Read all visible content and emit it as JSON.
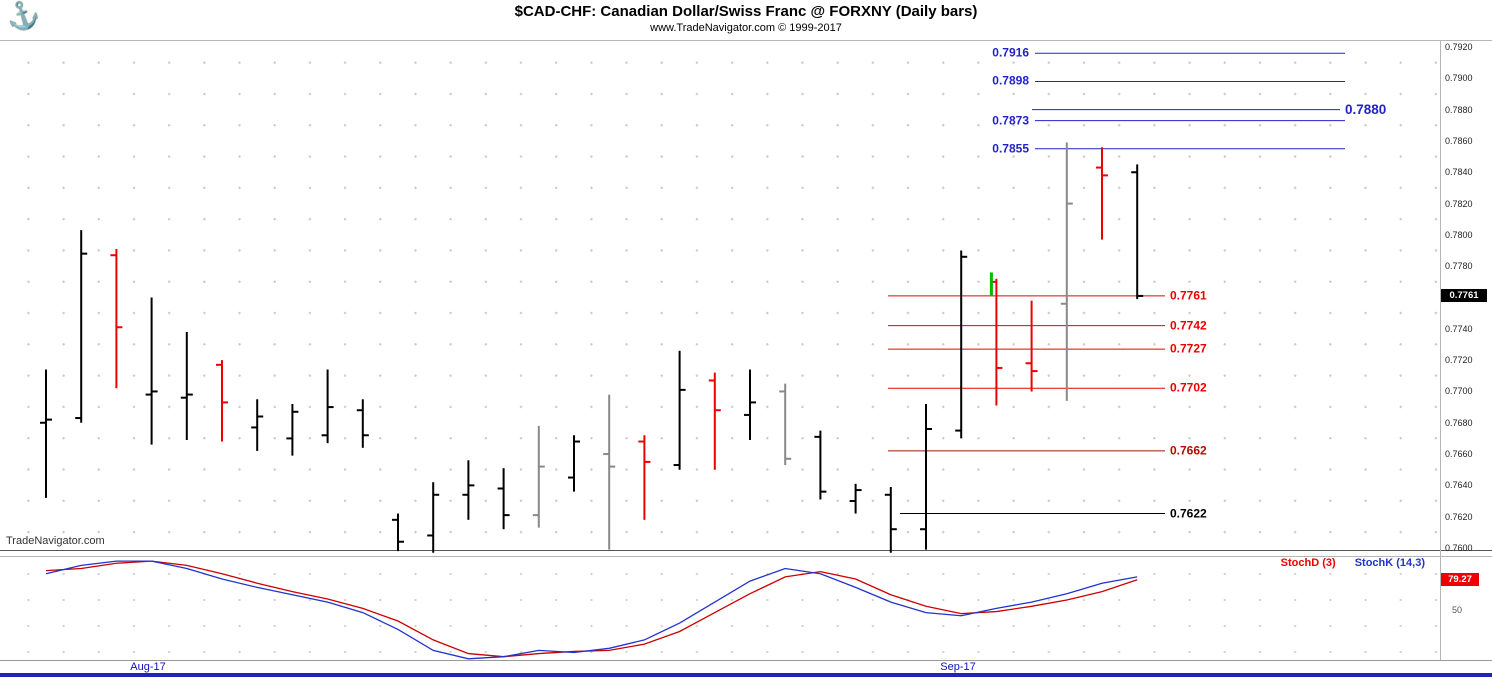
{
  "header": {
    "title": "$CAD-CHF:  Canadian Dollar/Swiss Franc @ FORXNY  (Daily bars)",
    "subtitle": "www.TradeNavigator.com © 1999-2017",
    "logo_icon": "anchor-icon"
  },
  "watermark": "TradeNavigator.com",
  "price_axis": {
    "labels": [
      "0.7920",
      "0.7900",
      "0.7880",
      "0.7860",
      "0.7840",
      "0.7820",
      "0.7800",
      "0.7780",
      "0.7760",
      "0.7740",
      "0.7720",
      "0.7700",
      "0.7680",
      "0.7660",
      "0.7640",
      "0.7620",
      "0.7600"
    ],
    "current_price_badge": "0.7761",
    "badge_bg": "#000000"
  },
  "stoch_panel": {
    "legend": [
      {
        "label": "StochD (3)",
        "color": "#ee0000"
      },
      {
        "label": "StochK (14,3)",
        "color": "#2233cc"
      }
    ],
    "value_badge": "79.27",
    "value_badge_bg": "#ee0000",
    "mid_label": "50"
  },
  "x_axis": {
    "labels": [
      "Aug-17",
      "Sep-17"
    ]
  },
  "chart_data": {
    "type": "bar",
    "subtype": "ohlc-daily-bars",
    "symbol": "$CAD-CHF",
    "title": "$CAD-CHF Canadian Dollar/Swiss Franc @ FORXNY Daily",
    "price_range": [
      0.76,
      0.792
    ],
    "bars": [
      {
        "color": "black",
        "o": 0.768,
        "h": 0.7714,
        "l": 0.7632,
        "c": 0.7682
      },
      {
        "color": "black",
        "o": 0.7683,
        "h": 0.7803,
        "l": 0.768,
        "c": 0.7788
      },
      {
        "color": "red",
        "o": 0.7787,
        "h": 0.7791,
        "l": 0.7702,
        "c": 0.7741
      },
      {
        "color": "black",
        "o": 0.7698,
        "h": 0.776,
        "l": 0.7666,
        "c": 0.77
      },
      {
        "color": "black",
        "o": 0.7696,
        "h": 0.7738,
        "l": 0.7669,
        "c": 0.7698
      },
      {
        "color": "red",
        "o": 0.7717,
        "h": 0.772,
        "l": 0.7668,
        "c": 0.7693
      },
      {
        "color": "black",
        "o": 0.7677,
        "h": 0.7695,
        "l": 0.7662,
        "c": 0.7684
      },
      {
        "color": "black",
        "o": 0.767,
        "h": 0.7692,
        "l": 0.7659,
        "c": 0.7687
      },
      {
        "color": "black",
        "o": 0.7672,
        "h": 0.7714,
        "l": 0.7667,
        "c": 0.769
      },
      {
        "color": "black",
        "o": 0.7688,
        "h": 0.7695,
        "l": 0.7664,
        "c": 0.7672
      },
      {
        "color": "black",
        "o": 0.7618,
        "h": 0.7622,
        "l": 0.7598,
        "c": 0.7604
      },
      {
        "color": "black",
        "o": 0.7608,
        "h": 0.7642,
        "l": 0.7597,
        "c": 0.7634
      },
      {
        "color": "black",
        "o": 0.7634,
        "h": 0.7656,
        "l": 0.7618,
        "c": 0.764
      },
      {
        "color": "black",
        "o": 0.7638,
        "h": 0.7651,
        "l": 0.7612,
        "c": 0.7621
      },
      {
        "color": "gray",
        "o": 0.7621,
        "h": 0.7678,
        "l": 0.7613,
        "c": 0.7652
      },
      {
        "color": "black",
        "o": 0.7645,
        "h": 0.7672,
        "l": 0.7636,
        "c": 0.7668
      },
      {
        "color": "gray",
        "o": 0.766,
        "h": 0.7698,
        "l": 0.7599,
        "c": 0.7652
      },
      {
        "color": "red",
        "o": 0.7668,
        "h": 0.7672,
        "l": 0.7618,
        "c": 0.7655
      },
      {
        "color": "black",
        "o": 0.7653,
        "h": 0.7726,
        "l": 0.765,
        "c": 0.7701
      },
      {
        "color": "red",
        "o": 0.7707,
        "h": 0.7712,
        "l": 0.765,
        "c": 0.7688
      },
      {
        "color": "black",
        "o": 0.7685,
        "h": 0.7714,
        "l": 0.7669,
        "c": 0.7693
      },
      {
        "color": "gray",
        "o": 0.77,
        "h": 0.7705,
        "l": 0.7653,
        "c": 0.7657
      },
      {
        "color": "black",
        "o": 0.7671,
        "h": 0.7675,
        "l": 0.7631,
        "c": 0.7636
      },
      {
        "color": "black",
        "o": 0.763,
        "h": 0.7641,
        "l": 0.7622,
        "c": 0.7637
      },
      {
        "color": "black",
        "o": 0.7634,
        "h": 0.7639,
        "l": 0.7597,
        "c": 0.7612
      },
      {
        "color": "black",
        "o": 0.7612,
        "h": 0.7692,
        "l": 0.7599,
        "c": 0.7676
      },
      {
        "color": "black",
        "o": 0.7675,
        "h": 0.779,
        "l": 0.767,
        "c": 0.7786
      },
      {
        "color": "red",
        "o": 0.777,
        "h": 0.7772,
        "l": 0.7691,
        "c": 0.7715
      },
      {
        "color": "red",
        "o": 0.7718,
        "h": 0.7758,
        "l": 0.77,
        "c": 0.7713
      },
      {
        "color": "gray",
        "o": 0.7756,
        "h": 0.7859,
        "l": 0.7694,
        "c": 0.782
      },
      {
        "color": "red",
        "o": 0.7843,
        "h": 0.7856,
        "l": 0.7797,
        "c": 0.7838
      },
      {
        "color": "black",
        "o": 0.784,
        "h": 0.7845,
        "l": 0.7759,
        "c": 0.7761
      }
    ],
    "green_mark": {
      "bar_index": 27,
      "low": 0.7761,
      "high": 0.7776
    },
    "levels": [
      {
        "label": "0.7916",
        "price": 0.7916,
        "group": "resistance",
        "color": "#2222cc",
        "label_side": "left"
      },
      {
        "label": "0.7898",
        "price": 0.7898,
        "group": "resistance",
        "color": "#2222cc",
        "label_side": "left"
      },
      {
        "label": "0.7880",
        "price": 0.788,
        "group": "resistance",
        "color": "#2222cc",
        "label_side": "right",
        "emphasis": true
      },
      {
        "label": "0.7873",
        "price": 0.7873,
        "group": "resistance",
        "color": "#2222cc",
        "label_side": "left"
      },
      {
        "label": "0.7855",
        "price": 0.7855,
        "group": "resistance",
        "color": "#2222cc",
        "label_side": "left"
      },
      {
        "label": "0.7761",
        "price": 0.7761,
        "group": "support",
        "color": "#ee0000",
        "label_side": "right"
      },
      {
        "label": "0.7742",
        "price": 0.7742,
        "group": "support",
        "color": "#ee0000",
        "label_side": "right"
      },
      {
        "label": "0.7727",
        "price": 0.7727,
        "group": "support",
        "color": "#ee0000",
        "label_side": "right"
      },
      {
        "label": "0.7702",
        "price": 0.7702,
        "group": "support",
        "color": "#ee0000",
        "label_side": "right"
      },
      {
        "label": "0.7662",
        "price": 0.7662,
        "group": "support",
        "color": "#aa1100",
        "label_side": "right"
      },
      {
        "label": "0.7622",
        "price": 0.7622,
        "group": "support",
        "color": "#000000",
        "label_side": "right"
      }
    ],
    "stochastics": {
      "k_label": "StochK (14,3)",
      "d_label": "StochD (3)",
      "range": [
        0,
        100
      ],
      "last_value": 79.27,
      "k": [
        85,
        93,
        97,
        97,
        90,
        80,
        72,
        65,
        58,
        48,
        32,
        12,
        4,
        6,
        12,
        10,
        14,
        22,
        38,
        58,
        78,
        90,
        85,
        72,
        58,
        48,
        45,
        52,
        58,
        66,
        76,
        82
      ],
      "d": [
        88,
        90,
        95,
        97,
        93,
        85,
        76,
        68,
        61,
        52,
        40,
        22,
        9,
        6,
        9,
        11,
        12,
        18,
        30,
        48,
        66,
        82,
        87,
        80,
        65,
        54,
        47,
        49,
        54,
        60,
        68,
        79.3
      ]
    }
  }
}
